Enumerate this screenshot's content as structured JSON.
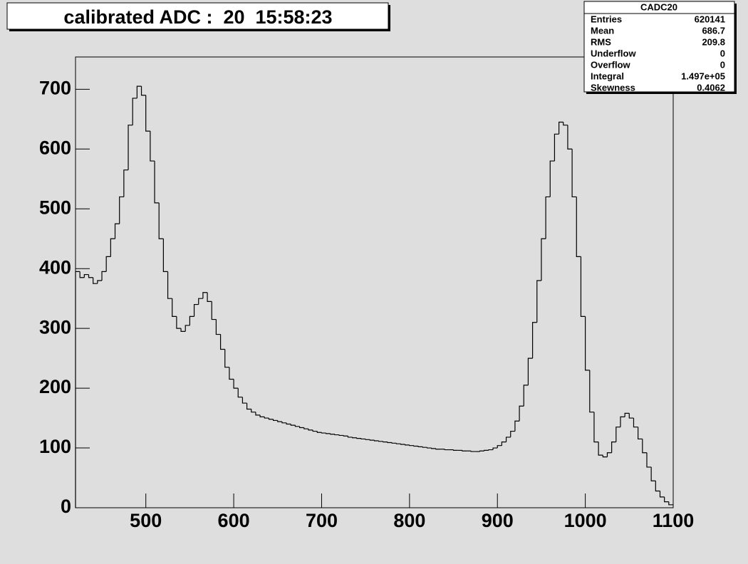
{
  "chart_data": {
    "type": "histogram",
    "title": "calibrated ADC :  20  15:58:23",
    "bins": [
      420,
      425,
      430,
      435,
      440,
      445,
      450,
      455,
      460,
      465,
      470,
      475,
      480,
      485,
      490,
      495,
      500,
      505,
      510,
      515,
      520,
      525,
      530,
      535,
      540,
      545,
      550,
      555,
      560,
      565,
      570,
      575,
      580,
      585,
      590,
      595,
      600,
      605,
      610,
      615,
      620,
      625,
      630,
      635,
      640,
      645,
      650,
      655,
      660,
      665,
      670,
      675,
      680,
      685,
      690,
      695,
      700,
      705,
      710,
      715,
      720,
      725,
      730,
      735,
      740,
      745,
      750,
      755,
      760,
      765,
      770,
      775,
      780,
      785,
      790,
      795,
      800,
      805,
      810,
      815,
      820,
      825,
      830,
      835,
      840,
      845,
      850,
      855,
      860,
      865,
      870,
      875,
      880,
      885,
      890,
      895,
      900,
      905,
      910,
      915,
      920,
      925,
      930,
      935,
      940,
      945,
      950,
      955,
      960,
      965,
      970,
      975,
      980,
      985,
      990,
      995,
      1000,
      1005,
      1010,
      1015,
      1020,
      1025,
      1030,
      1035,
      1040,
      1045,
      1050,
      1055,
      1060,
      1065,
      1070,
      1075,
      1080,
      1085,
      1090,
      1095,
      1100
    ],
    "values": [
      395,
      385,
      390,
      385,
      375,
      380,
      395,
      420,
      450,
      475,
      520,
      565,
      640,
      685,
      705,
      690,
      630,
      580,
      510,
      450,
      395,
      350,
      320,
      300,
      295,
      305,
      320,
      340,
      350,
      360,
      345,
      315,
      290,
      265,
      235,
      215,
      200,
      185,
      175,
      165,
      160,
      155,
      152,
      150,
      148,
      146,
      144,
      142,
      140,
      138,
      136,
      134,
      132,
      130,
      128,
      126,
      125,
      124,
      123,
      122,
      121,
      120,
      118,
      117,
      116,
      115,
      114,
      113,
      112,
      111,
      110,
      109,
      108,
      107,
      106,
      105,
      104,
      103,
      102,
      101,
      100,
      99,
      98,
      98,
      97,
      97,
      96,
      96,
      95,
      95,
      94,
      94,
      95,
      96,
      97,
      100,
      104,
      110,
      118,
      128,
      145,
      170,
      205,
      250,
      310,
      380,
      450,
      520,
      580,
      625,
      645,
      640,
      600,
      520,
      420,
      320,
      230,
      160,
      110,
      88,
      85,
      92,
      110,
      135,
      152,
      158,
      150,
      135,
      115,
      92,
      68,
      45,
      28,
      18,
      10,
      5
    ],
    "color": "#000000",
    "xlim": [
      420,
      1100
    ],
    "xticks": [
      500,
      600,
      700,
      800,
      900,
      1000,
      1100
    ],
    "ylim": [
      0,
      754
    ],
    "yticks": [
      0,
      100,
      200,
      300,
      400,
      500,
      600,
      700
    ],
    "stats": {
      "title": "CADC20",
      "rows": [
        [
          "Entries",
          "620141"
        ],
        [
          "Mean",
          "686.7"
        ],
        [
          "RMS",
          "209.8"
        ],
        [
          "Underflow",
          "0"
        ],
        [
          "Overflow",
          "0"
        ],
        [
          "Integral",
          "1.497e+05"
        ],
        [
          "Skewness",
          "0.4062"
        ]
      ]
    }
  }
}
